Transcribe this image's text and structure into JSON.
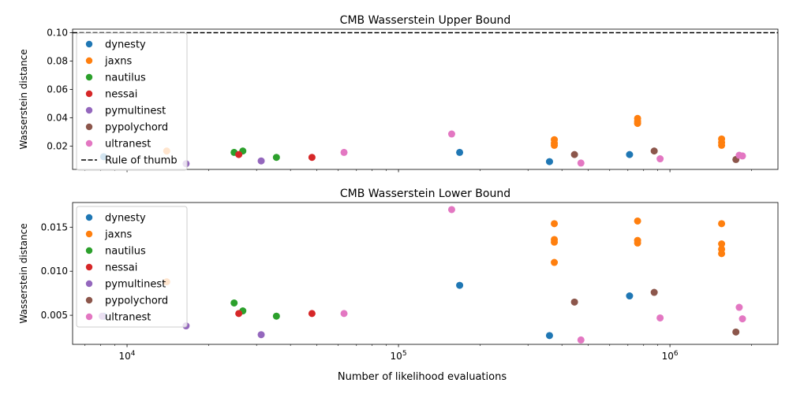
{
  "figure": {
    "xlabel": "Number of likelihood evaluations"
  },
  "chart_data": [
    {
      "type": "scatter",
      "title": "CMB Wasserstein Upper Bound",
      "xlabel": "",
      "ylabel": "Wasserstein distance",
      "xscale": "log",
      "xlim": [
        6300,
        2500000
      ],
      "ylim": [
        0.0035,
        0.1025
      ],
      "x_ticks": [
        {
          "value": 10000,
          "label": "10^4"
        },
        {
          "value": 100000,
          "label": "10^5"
        },
        {
          "value": 1000000,
          "label": "10^6"
        }
      ],
      "y_ticks": [
        {
          "value": 0.02,
          "label": "0.02"
        },
        {
          "value": 0.04,
          "label": "0.04"
        },
        {
          "value": 0.06,
          "label": "0.06"
        },
        {
          "value": 0.08,
          "label": "0.08"
        },
        {
          "value": 0.1,
          "label": "0.10"
        }
      ],
      "reference_line": {
        "label": "Rule of thumb",
        "y": 0.1,
        "color": "#000000",
        "style": "dashed"
      },
      "legend": {
        "placement": "upper left"
      },
      "series": [
        {
          "name": "dynesty",
          "color": "#1f77b4",
          "points": [
            [
              8200,
              0.0125
            ],
            [
              168000,
              0.0155
            ],
            [
              360000,
              0.009
            ],
            [
              710000,
              0.014
            ]
          ]
        },
        {
          "name": "jaxns",
          "color": "#ff7f0e",
          "points": [
            [
              14000,
              0.0165
            ],
            [
              375000,
              0.0245
            ],
            [
              375000,
              0.022
            ],
            [
              375000,
              0.0205
            ],
            [
              760000,
              0.0395
            ],
            [
              760000,
              0.0375
            ],
            [
              760000,
              0.036
            ],
            [
              1550000,
              0.025
            ],
            [
              1550000,
              0.0225
            ],
            [
              1550000,
              0.0205
            ]
          ]
        },
        {
          "name": "nautilus",
          "color": "#2ca02c",
          "points": [
            [
              24800,
              0.0155
            ],
            [
              26700,
              0.0165
            ],
            [
              35500,
              0.012
            ]
          ]
        },
        {
          "name": "nessai",
          "color": "#d62728",
          "points": [
            [
              25800,
              0.014
            ],
            [
              48000,
              0.012
            ]
          ]
        },
        {
          "name": "pymultinest",
          "color": "#9467bd",
          "points": [
            [
              16500,
              0.0075
            ],
            [
              31200,
              0.0095
            ]
          ]
        },
        {
          "name": "pypolychord",
          "color": "#8c564b",
          "points": [
            [
              445000,
              0.014
            ],
            [
              875000,
              0.0165
            ],
            [
              1750000,
              0.0105
            ]
          ]
        },
        {
          "name": "ultranest",
          "color": "#e377c2",
          "points": [
            [
              63000,
              0.0155
            ],
            [
              157000,
              0.0285
            ],
            [
              470000,
              0.008
            ],
            [
              920000,
              0.011
            ],
            [
              1800000,
              0.0135
            ],
            [
              1850000,
              0.013
            ]
          ]
        }
      ]
    },
    {
      "type": "scatter",
      "title": "CMB Wasserstein Lower Bound",
      "xlabel": "Number of likelihood evaluations",
      "ylabel": "Wasserstein distance",
      "xscale": "log",
      "xlim": [
        6300,
        2500000
      ],
      "ylim": [
        0.0017,
        0.0178
      ],
      "x_ticks": [
        {
          "value": 10000,
          "label": "10^4"
        },
        {
          "value": 100000,
          "label": "10^5"
        },
        {
          "value": 1000000,
          "label": "10^6"
        }
      ],
      "y_ticks": [
        {
          "value": 0.005,
          "label": "0.005"
        },
        {
          "value": 0.01,
          "label": "0.010"
        },
        {
          "value": 0.015,
          "label": "0.015"
        }
      ],
      "legend": {
        "placement": "upper left"
      },
      "series": [
        {
          "name": "dynesty",
          "color": "#1f77b4",
          "points": [
            [
              8200,
              0.0049
            ],
            [
              168000,
              0.0084
            ],
            [
              360000,
              0.0027
            ],
            [
              710000,
              0.0072
            ]
          ]
        },
        {
          "name": "jaxns",
          "color": "#ff7f0e",
          "points": [
            [
              14000,
              0.0088
            ],
            [
              375000,
              0.0154
            ],
            [
              375000,
              0.0136
            ],
            [
              375000,
              0.0133
            ],
            [
              375000,
              0.011
            ],
            [
              760000,
              0.0157
            ],
            [
              760000,
              0.0135
            ],
            [
              760000,
              0.0132
            ],
            [
              1550000,
              0.0154
            ],
            [
              1550000,
              0.0131
            ],
            [
              1550000,
              0.0125
            ],
            [
              1550000,
              0.012
            ]
          ]
        },
        {
          "name": "nautilus",
          "color": "#2ca02c",
          "points": [
            [
              24800,
              0.0064
            ],
            [
              26700,
              0.0055
            ],
            [
              35500,
              0.0049
            ]
          ]
        },
        {
          "name": "nessai",
          "color": "#d62728",
          "points": [
            [
              25800,
              0.0052
            ],
            [
              48000,
              0.0052
            ]
          ]
        },
        {
          "name": "pymultinest",
          "color": "#9467bd",
          "points": [
            [
              8100,
              0.0049
            ],
            [
              16500,
              0.0038
            ],
            [
              31200,
              0.0028
            ]
          ]
        },
        {
          "name": "pypolychord",
          "color": "#8c564b",
          "points": [
            [
              445000,
              0.0065
            ],
            [
              875000,
              0.0076
            ],
            [
              1750000,
              0.0031
            ]
          ]
        },
        {
          "name": "ultranest",
          "color": "#e377c2",
          "points": [
            [
              63000,
              0.0052
            ],
            [
              157000,
              0.017
            ],
            [
              470000,
              0.0022
            ],
            [
              920000,
              0.0047
            ],
            [
              1800000,
              0.0059
            ],
            [
              1850000,
              0.0046
            ]
          ]
        }
      ]
    }
  ]
}
